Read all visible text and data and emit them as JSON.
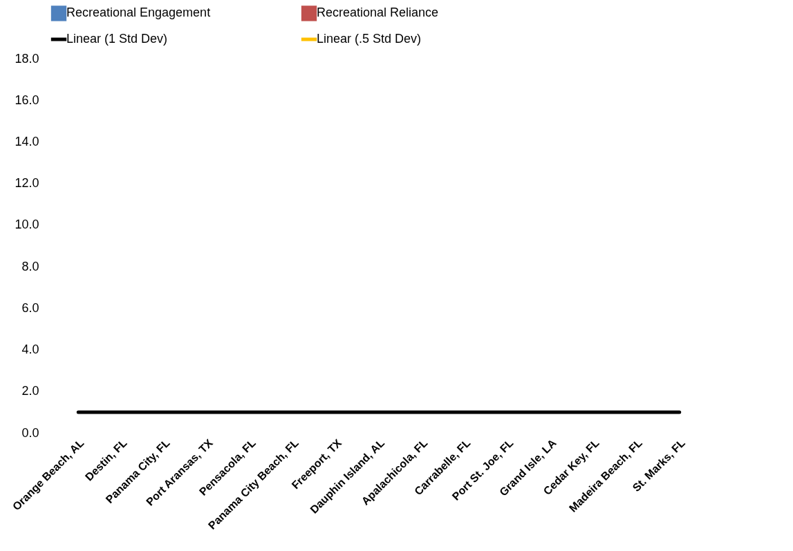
{
  "chart_data": {
    "type": "bar",
    "categories": [
      "Orange Beach, AL",
      "Destin, FL",
      "Panama City, FL",
      "Port Aransas, TX",
      "Pensacola, FL",
      "Panama City Beach, FL",
      "Freeport, TX",
      "Dauphin Island, AL",
      "Apalachicola, FL",
      "Carrabelle, FL",
      "Port St. Joe, FL",
      "Grand Isle, LA",
      "Cedar Key, FL",
      "Madeira Beach, FL",
      "St. Marks, FL"
    ],
    "series": [
      {
        "name": "Recreational Engagement",
        "color": "#4f81bd",
        "values": [
          null,
          null,
          null,
          null,
          null,
          null,
          null,
          null,
          null,
          null,
          null,
          null,
          null,
          null,
          null
        ]
      },
      {
        "name": "Recreational Reliance",
        "color": "#c0504d",
        "values": [
          null,
          null,
          null,
          null,
          null,
          null,
          null,
          null,
          null,
          null,
          null,
          null,
          null,
          null,
          null
        ]
      },
      {
        "name": "Linear (1 Std Dev)",
        "type": "line",
        "color": "#000000",
        "values": [
          1,
          1,
          1,
          1,
          1,
          1,
          1,
          1,
          1,
          1,
          1,
          1,
          1,
          1,
          1
        ]
      },
      {
        "name": "Linear (.5 Std Dev)",
        "type": "line",
        "color": "#ffc000",
        "values": [
          null,
          null,
          null,
          null,
          null,
          null,
          null,
          null,
          null,
          null,
          null,
          null,
          null,
          null,
          null
        ]
      }
    ],
    "ylim": [
      0,
      18
    ],
    "yticks": [
      {
        "value": 0,
        "label": "0.0"
      },
      {
        "value": 2,
        "label": "2.0"
      },
      {
        "value": 4,
        "label": "4.0"
      },
      {
        "value": 6,
        "label": "6.0"
      },
      {
        "value": 8,
        "label": "8.0"
      },
      {
        "value": 10,
        "label": "10.0"
      },
      {
        "value": 12,
        "label": "12.0"
      },
      {
        "value": 14,
        "label": "14.0"
      },
      {
        "value": 16,
        "label": "16.0"
      },
      {
        "value": 18,
        "label": "18.0"
      }
    ],
    "legend": "top",
    "grid": false
  }
}
